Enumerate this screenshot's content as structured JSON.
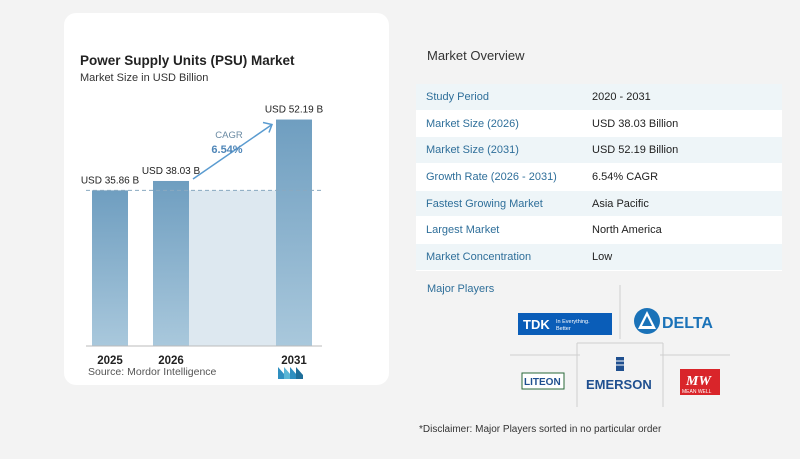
{
  "chart_data": {
    "type": "bar",
    "title": "Power Supply Units (PSU) Market",
    "subtitle": "Market Size in USD Billion",
    "categories": [
      "2025",
      "2026",
      "2031"
    ],
    "values": [
      35.86,
      38.03,
      52.19
    ],
    "value_labels": [
      "USD 35.86 B",
      "USD 38.03 B",
      "USD 52.19 B"
    ],
    "cagr_label": "CAGR",
    "cagr_value": "6.54%",
    "ylim": [
      0,
      56
    ],
    "colors": {
      "bar": "#6f9ec0",
      "bar_light": "#a9c8dc",
      "shade": "#dde8f0",
      "arrow": "#5a9bd0",
      "cagr_value": "#4f86b8"
    }
  },
  "source": "Source:  Mordor Intelligence",
  "overview": {
    "title": "Market Overview",
    "rows": [
      {
        "label": "Study Period",
        "value": "2020 - 2031"
      },
      {
        "label": "Market Size (2026)",
        "value": "USD 38.03 Billion"
      },
      {
        "label": "Market Size (2031)",
        "value": "USD 52.19 Billion"
      },
      {
        "label": "Growth Rate (2026 - 2031)",
        "value": "6.54% CAGR"
      },
      {
        "label": "Fastest Growing Market",
        "value": "Asia Pacific"
      },
      {
        "label": "Largest Market",
        "value": "North America"
      },
      {
        "label": "Market Concentration",
        "value": "Low"
      }
    ]
  },
  "players": {
    "title": "Major Players",
    "logos": {
      "tdk": "TDK",
      "tdk_tagline_1": "In Everything.",
      "tdk_tagline_2": "Better",
      "delta": "DELTA",
      "liteon": "LITEON",
      "emerson": "EMERSON",
      "meanwell": "MW",
      "meanwell_sub": "MEAN WELL"
    }
  },
  "disclaimer": "*Disclaimer: Major Players sorted in no particular order"
}
